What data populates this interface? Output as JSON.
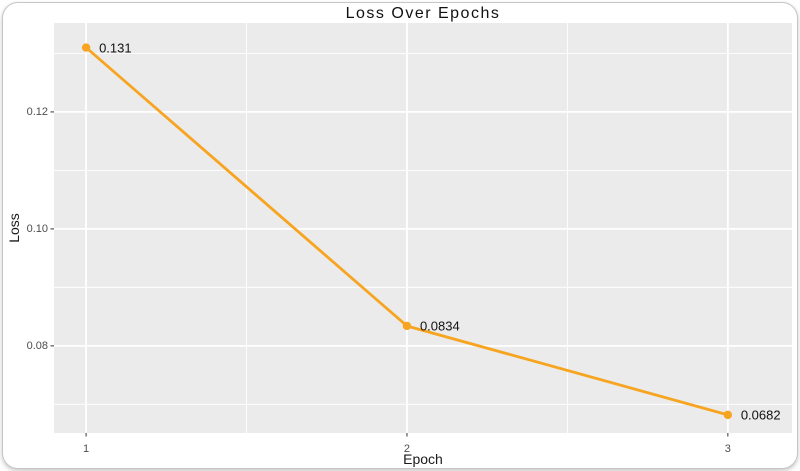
{
  "chart_data": {
    "type": "line",
    "title": "Loss Over Epochs",
    "xlabel": "Epoch",
    "ylabel": "Loss",
    "x": [
      1,
      2,
      3
    ],
    "values": [
      0.131,
      0.0834,
      0.0682
    ],
    "point_labels": [
      "0.131",
      "0.0834",
      "0.0682"
    ],
    "x_ticks": [
      1,
      2,
      3
    ],
    "x_tick_labels": [
      "1",
      "2",
      "3"
    ],
    "y_ticks": [
      0.08,
      0.1,
      0.12
    ],
    "y_tick_labels": [
      "0.08",
      "0.10",
      "0.12"
    ],
    "x_minor_ticks": [
      1.5,
      2.5
    ],
    "y_minor_ticks": [
      0.07,
      0.09,
      0.11,
      0.13
    ],
    "xlim": [
      0.9,
      3.2
    ],
    "ylim": [
      0.0651,
      0.1352
    ],
    "grid": true,
    "legend": "none",
    "colors": {
      "series": "#F7A420",
      "panel_bg": "#EBEBEB",
      "gridline": "#FFFFFF",
      "tick": "#555555",
      "tick_label": "#4d4d4d",
      "card_border": "#C6C6C6",
      "background": "#FFFFFF"
    }
  }
}
